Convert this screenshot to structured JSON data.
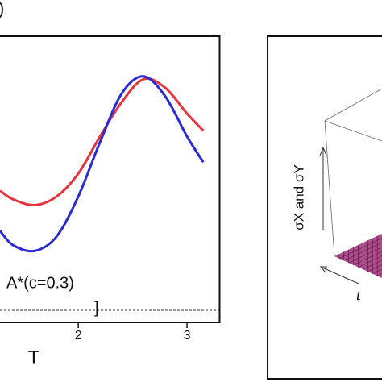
{
  "chart_data": [
    {
      "type": "line",
      "panel_label": ")",
      "xlabel": "T",
      "annotation": "A*(c=0.3)",
      "bracket": "]",
      "x": [
        1.28,
        1.4,
        1.6,
        1.8,
        2.0,
        2.2,
        2.4,
        2.6,
        2.8,
        3.0,
        3.15
      ],
      "series": [
        {
          "color": "#e8323c",
          "values": [
            0.46,
            0.43,
            0.41,
            0.44,
            0.52,
            0.65,
            0.77,
            0.85,
            0.82,
            0.73,
            0.67
          ]
        },
        {
          "color": "#2a2ad8",
          "values": [
            0.32,
            0.27,
            0.25,
            0.3,
            0.44,
            0.63,
            0.8,
            0.86,
            0.79,
            0.65,
            0.56
          ]
        }
      ],
      "xlim": [
        1.25,
        3.3
      ],
      "ylim": [
        0,
        1
      ],
      "xticks": [
        2,
        3
      ]
    },
    {
      "type": "surface",
      "zlabel": "σX and σY",
      "xlabel": "t",
      "color": "#b04a8c"
    }
  ]
}
